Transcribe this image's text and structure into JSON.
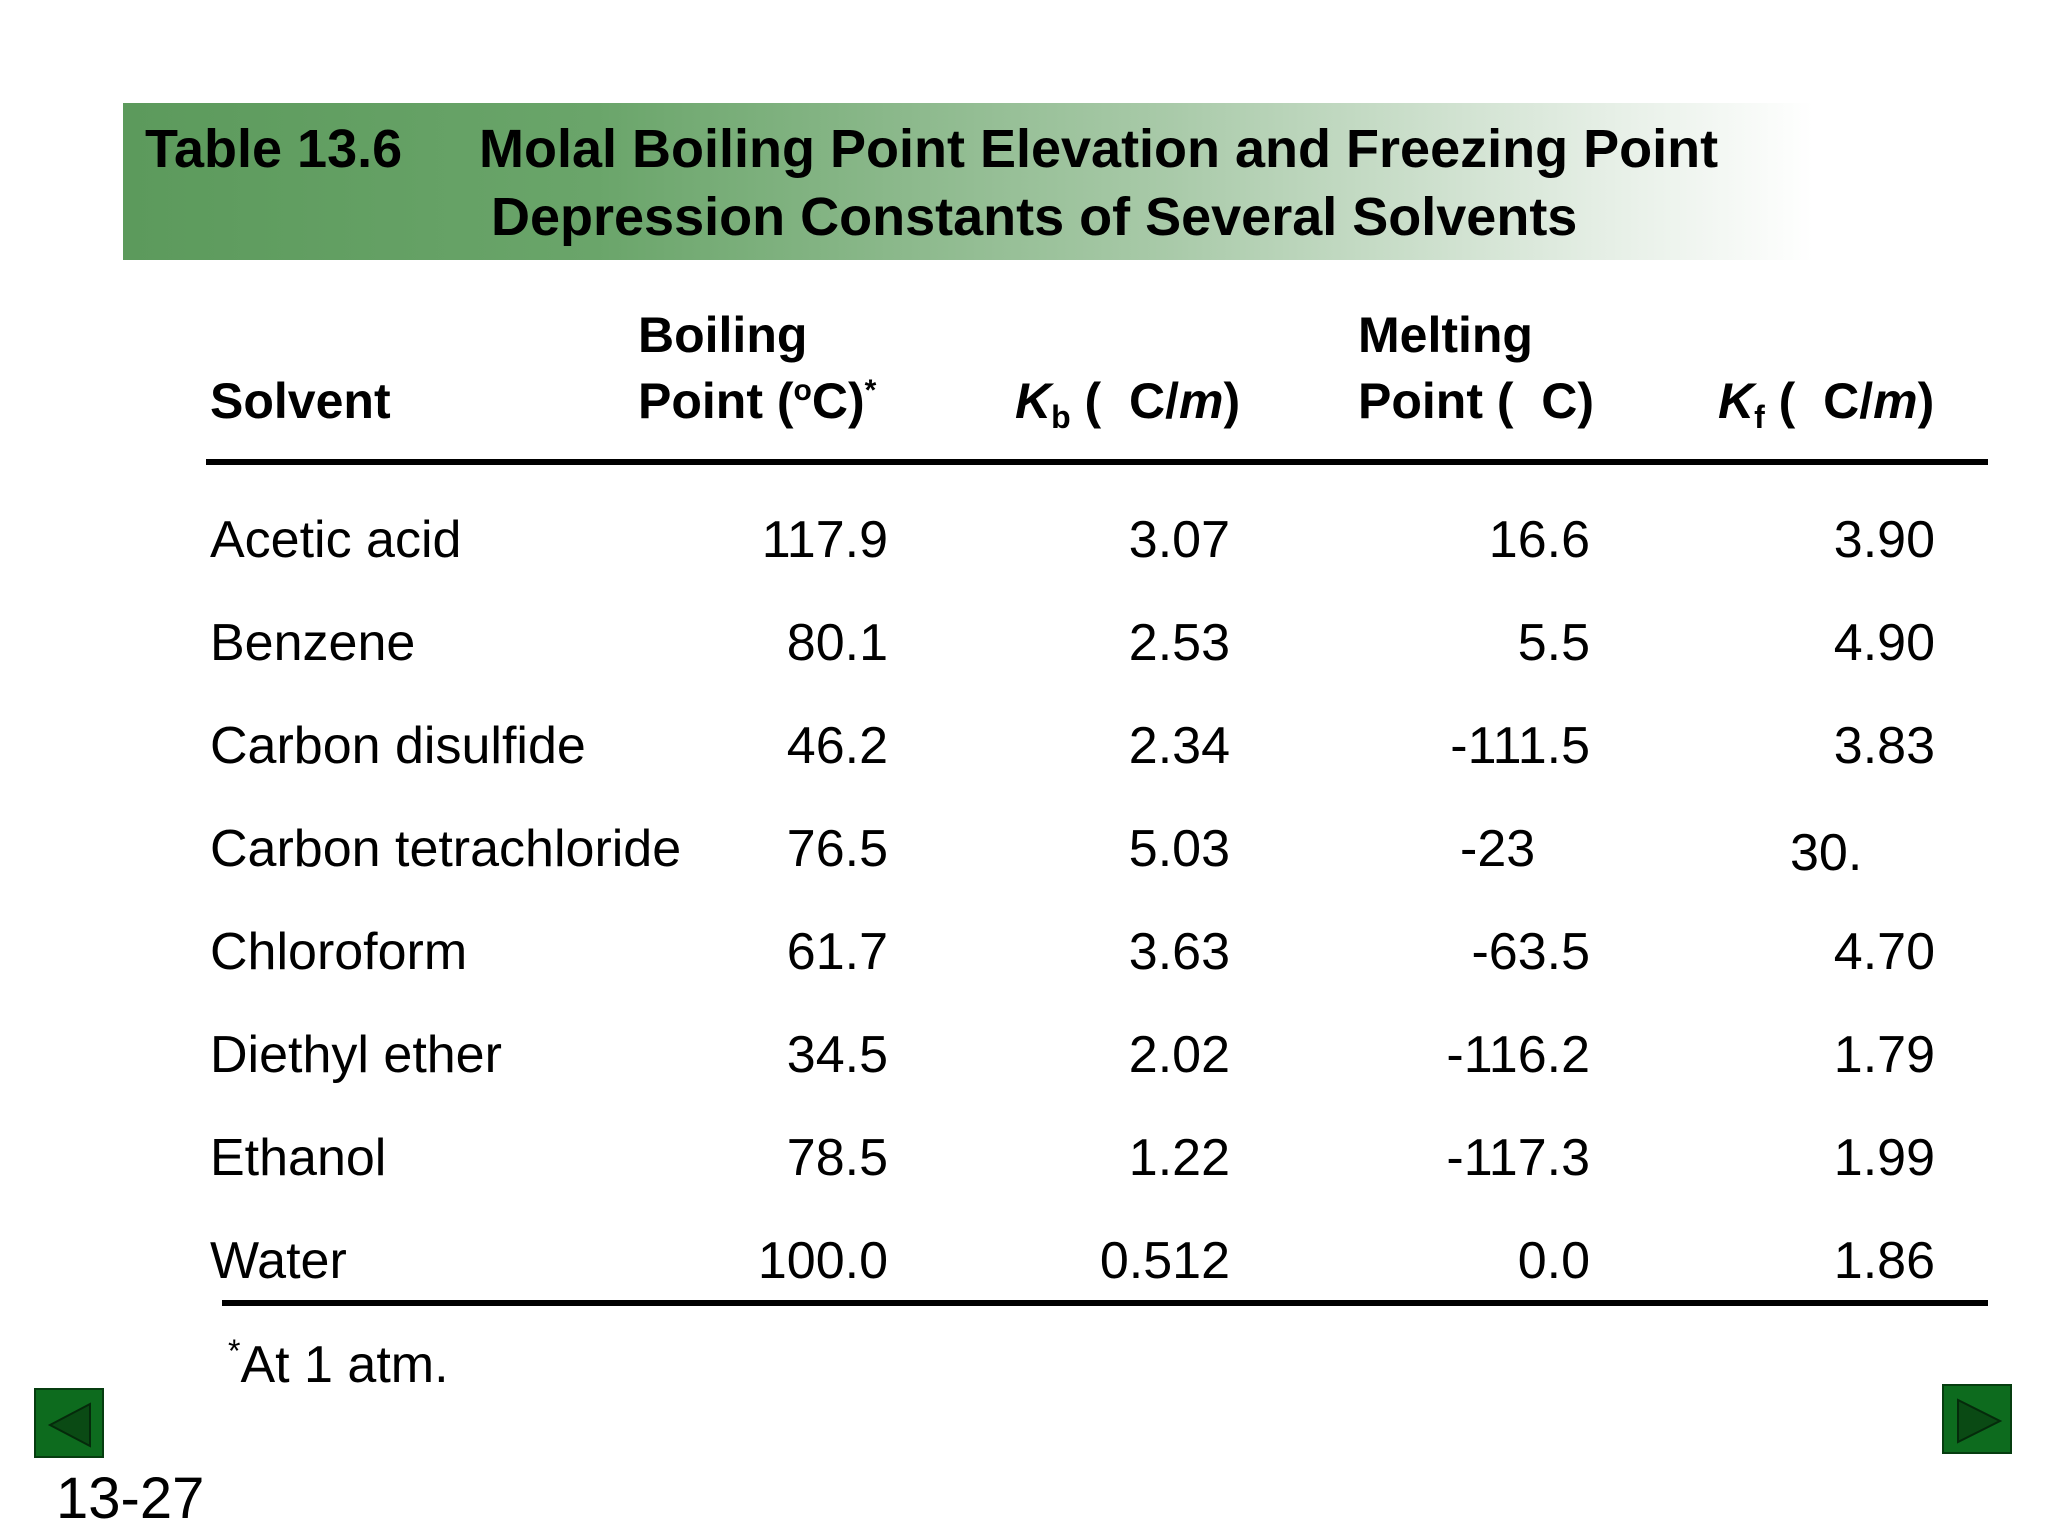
{
  "banner": {
    "label": "Table 13.6",
    "title_line1": "Molal Boiling Point Elevation and Freezing Point",
    "title_line2": "Depression Constants of Several Solvents"
  },
  "headers": {
    "solvent": "Solvent",
    "boiling_line1": "Boiling",
    "boiling_line2": "Point (",
    "boiling_deg": "o",
    "boiling_unit": "C)",
    "boiling_star": "*",
    "kb_symbol": "K",
    "kb_sub": "b",
    "kb_unit_open": " (  C/",
    "kb_unit_m": "m",
    "kb_unit_close": ")",
    "melting_line1": "Melting",
    "melting_line2": "Point (  C)",
    "kf_symbol": "K",
    "kf_sub": "f",
    "kf_unit_open": " (  C/",
    "kf_unit_m": "m",
    "kf_unit_close": ")"
  },
  "rows": [
    {
      "solvent": "Acetic acid",
      "bp": "117.9",
      "kb": "3.07",
      "mp": "16.6",
      "kf": "3.90"
    },
    {
      "solvent": "Benzene",
      "bp": "80.1",
      "kb": "2.53",
      "mp": "5.5",
      "kf": "4.90"
    },
    {
      "solvent": "Carbon disulfide",
      "bp": "46.2",
      "kb": "2.34",
      "mp": "-111.5",
      "kf": "3.83"
    },
    {
      "solvent": "Carbon tetrachloride",
      "bp": "76.5",
      "kb": "5.03",
      "mp": "-23",
      "kf": "30."
    },
    {
      "solvent": "Chloroform",
      "bp": "61.7",
      "kb": "3.63",
      "mp": "-63.5",
      "kf": "4.70"
    },
    {
      "solvent": "Diethyl ether",
      "bp": "34.5",
      "kb": "2.02",
      "mp": "-116.2",
      "kf": "1.79"
    },
    {
      "solvent": "Ethanol",
      "bp": "78.5",
      "kb": "1.22",
      "mp": "-117.3",
      "kf": "1.99"
    },
    {
      "solvent": "Water",
      "bp": "100.0",
      "kb": "0.512",
      "mp": "0.0",
      "kf": "1.86"
    }
  ],
  "footnote": {
    "star": "*",
    "text": "At 1 atm."
  },
  "nav": {
    "prev_icon": "triangle-left-icon",
    "next_icon": "triangle-right-icon",
    "color": "#0d6b1e"
  },
  "slide_number": "13-27"
}
